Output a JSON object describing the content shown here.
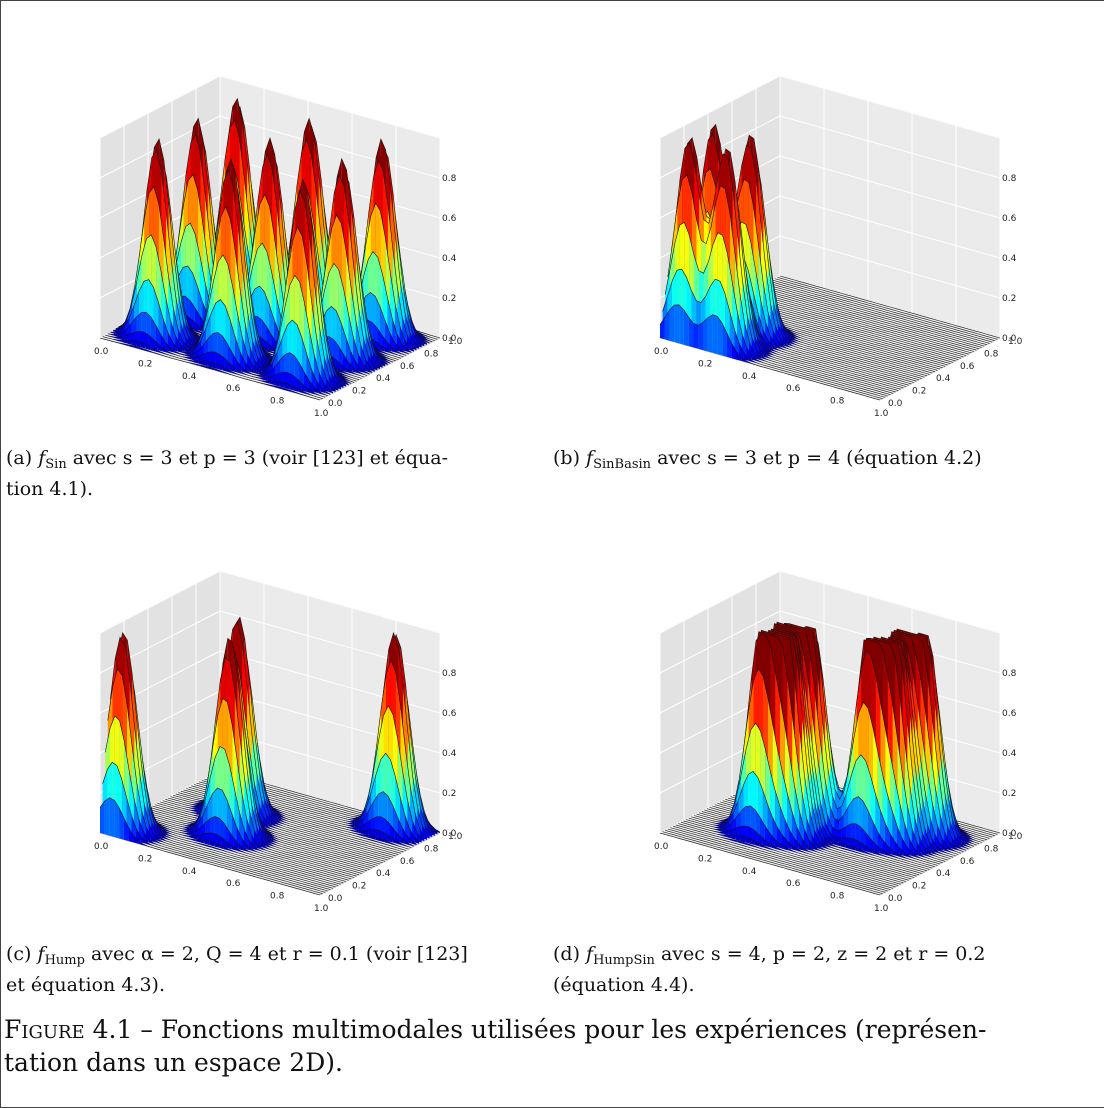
{
  "panels": [
    {
      "letter": "(a)",
      "func": "f",
      "func_sub": "Sin",
      "caption_rest_line1": "avec s = 3 et p = 3 (voir [123] et équa-",
      "caption_line2": "tion 4.1).",
      "chart_data": {
        "type": "surface3d",
        "xticks": [
          "0.0",
          "0.2",
          "0.4",
          "0.6",
          "0.8",
          "1.0"
        ],
        "yticks": [
          "0.0",
          "0.2",
          "0.4",
          "0.6",
          "0.8",
          "1.0"
        ],
        "zticks": [
          "0.0",
          "0.2",
          "0.4",
          "0.6",
          "0.8"
        ],
        "xlim": [
          0,
          1
        ],
        "ylim": [
          0,
          1
        ],
        "zlim": [
          0,
          1
        ],
        "colormap": "jet",
        "peaks": [
          {
            "x": 0.17,
            "y": 0.17,
            "z": 1.0
          },
          {
            "x": 0.5,
            "y": 0.17,
            "z": 1.0
          },
          {
            "x": 0.83,
            "y": 0.17,
            "z": 1.0
          },
          {
            "x": 0.17,
            "y": 0.5,
            "z": 1.0
          },
          {
            "x": 0.5,
            "y": 0.5,
            "z": 1.0
          },
          {
            "x": 0.83,
            "y": 0.5,
            "z": 1.0
          },
          {
            "x": 0.17,
            "y": 0.83,
            "z": 1.0
          },
          {
            "x": 0.5,
            "y": 0.83,
            "z": 1.0
          },
          {
            "x": 0.83,
            "y": 0.83,
            "z": 1.0
          }
        ]
      }
    },
    {
      "letter": "(b)",
      "func": "f",
      "func_sub": "SinBasin",
      "caption_rest_line1": "avec s = 3 et p = 4 (équation 4.2)",
      "caption_line2": "",
      "chart_data": {
        "type": "surface3d",
        "xticks": [
          "0.0",
          "0.2",
          "0.4",
          "0.6",
          "0.8",
          "1.0"
        ],
        "yticks": [
          "0.0",
          "0.2",
          "0.4",
          "0.6",
          "0.8",
          "1.0"
        ],
        "zticks": [
          "0.0",
          "0.2",
          "0.4",
          "0.6",
          "0.8"
        ],
        "xlim": [
          0,
          1
        ],
        "ylim": [
          0,
          1
        ],
        "zlim": [
          0,
          1
        ],
        "colormap": "jet",
        "peaks": [
          {
            "x": 0.08,
            "y": 0.1,
            "z": 1.0
          },
          {
            "x": 0.25,
            "y": 0.1,
            "z": 1.0
          },
          {
            "x": 0.08,
            "y": 0.3,
            "z": 1.0
          },
          {
            "x": 0.25,
            "y": 0.3,
            "z": 1.0
          }
        ]
      }
    },
    {
      "letter": "(c)",
      "func": "f",
      "func_sub": "Hump",
      "caption_rest_line1": "avec α = 2, Q = 4 et r = 0.1 (voir [123]",
      "caption_line2": "et équation 4.3).",
      "chart_data": {
        "type": "surface3d",
        "xticks": [
          "0.0",
          "0.2",
          "0.4",
          "0.6",
          "0.8",
          "1.0"
        ],
        "yticks": [
          "0.0",
          "0.2",
          "0.4",
          "0.6",
          "0.8",
          "1.0"
        ],
        "zticks": [
          "0.0",
          "0.2",
          "0.4",
          "0.6",
          "0.8"
        ],
        "xlim": [
          0,
          1
        ],
        "ylim": [
          0,
          1
        ],
        "zlim": [
          0,
          1
        ],
        "colormap": "jet",
        "peaks": [
          {
            "x": 0.05,
            "y": 0.1,
            "z": 1.0
          },
          {
            "x": 0.3,
            "y": 0.6,
            "z": 1.0
          },
          {
            "x": 0.4,
            "y": 0.35,
            "z": 1.0
          },
          {
            "x": 0.85,
            "y": 0.9,
            "z": 1.0
          }
        ]
      }
    },
    {
      "letter": "(d)",
      "func": "f",
      "func_sub": "HumpSin",
      "caption_rest_line1": "avec s = 4, p = 2, z = 2 et r = 0.2",
      "caption_line2": "(équation 4.4).",
      "chart_data": {
        "type": "surface3d",
        "xticks": [
          "0.0",
          "0.2",
          "0.4",
          "0.6",
          "0.8",
          "1.0"
        ],
        "yticks": [
          "0.0",
          "0.2",
          "0.4",
          "0.6",
          "0.8",
          "1.0"
        ],
        "zticks": [
          "0.0",
          "0.2",
          "0.4",
          "0.6",
          "0.8"
        ],
        "xlim": [
          0,
          1
        ],
        "ylim": [
          0,
          1
        ],
        "zlim": [
          0,
          1
        ],
        "colormap": "jet",
        "peaks": [
          {
            "x": 0.3,
            "y": 0.3,
            "z": 1.0
          },
          {
            "x": 0.4,
            "y": 0.35,
            "z": 1.0
          },
          {
            "x": 0.3,
            "y": 0.45,
            "z": 1.0
          },
          {
            "x": 0.42,
            "y": 0.5,
            "z": 1.0
          },
          {
            "x": 0.65,
            "y": 0.55,
            "z": 1.0
          },
          {
            "x": 0.75,
            "y": 0.6,
            "z": 1.0
          },
          {
            "x": 0.68,
            "y": 0.72,
            "z": 1.0
          },
          {
            "x": 0.8,
            "y": 0.75,
            "z": 1.0
          }
        ]
      }
    }
  ],
  "figure_label": "Figure 4.1",
  "figure_caption_line1": " – Fonctions multimodales utilisées pour les expériences (représen-",
  "figure_caption_line2": "tation dans un espace 2D)."
}
